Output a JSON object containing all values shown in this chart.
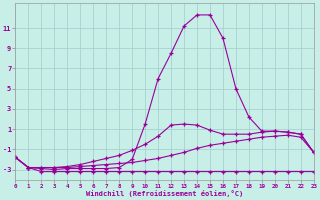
{
  "xlabel": "Windchill (Refroidissement éolien,°C)",
  "background_color": "#c8eee8",
  "grid_color": "#a0cccc",
  "line_color": "#990099",
  "x_ticks": [
    0,
    1,
    2,
    3,
    4,
    5,
    6,
    7,
    8,
    9,
    10,
    11,
    12,
    13,
    14,
    15,
    16,
    17,
    18,
    19,
    20,
    21,
    22,
    23
  ],
  "y_ticks": [
    -3,
    -1,
    1,
    3,
    5,
    7,
    9,
    11
  ],
  "ylim": [
    -4.0,
    13.5
  ],
  "xlim": [
    0,
    23
  ],
  "series": [
    [
      -1.8,
      -2.8,
      -3.2,
      -3.2,
      -3.2,
      -3.2,
      -3.2,
      -3.2,
      -3.2,
      -3.2,
      -3.2,
      -3.2,
      -3.2,
      -3.2,
      -3.2,
      -3.2,
      -3.2,
      -3.2,
      -3.2,
      -3.2,
      -3.2,
      -3.2,
      -3.2,
      -3.2
    ],
    [
      -1.8,
      -2.8,
      -2.8,
      -2.8,
      -2.8,
      -2.7,
      -2.6,
      -2.5,
      -2.4,
      -2.3,
      -2.1,
      -1.9,
      -1.6,
      -1.3,
      -0.9,
      -0.6,
      -0.4,
      -0.2,
      0.0,
      0.2,
      0.3,
      0.4,
      0.2,
      -1.3
    ],
    [
      -1.8,
      -2.8,
      -2.8,
      -2.8,
      -2.7,
      -2.5,
      -2.2,
      -1.9,
      -1.6,
      -1.1,
      -0.5,
      0.3,
      1.4,
      1.5,
      1.4,
      0.9,
      0.5,
      0.5,
      0.5,
      0.7,
      0.8,
      0.7,
      0.5,
      -1.3
    ],
    [
      -1.8,
      -2.8,
      -2.9,
      -3.0,
      -2.9,
      -2.9,
      -2.9,
      -2.9,
      -2.8,
      -2.0,
      1.5,
      6.0,
      8.5,
      11.2,
      12.3,
      12.3,
      10.0,
      5.0,
      2.2,
      0.8,
      0.8,
      0.7,
      0.5,
      -1.3
    ]
  ]
}
